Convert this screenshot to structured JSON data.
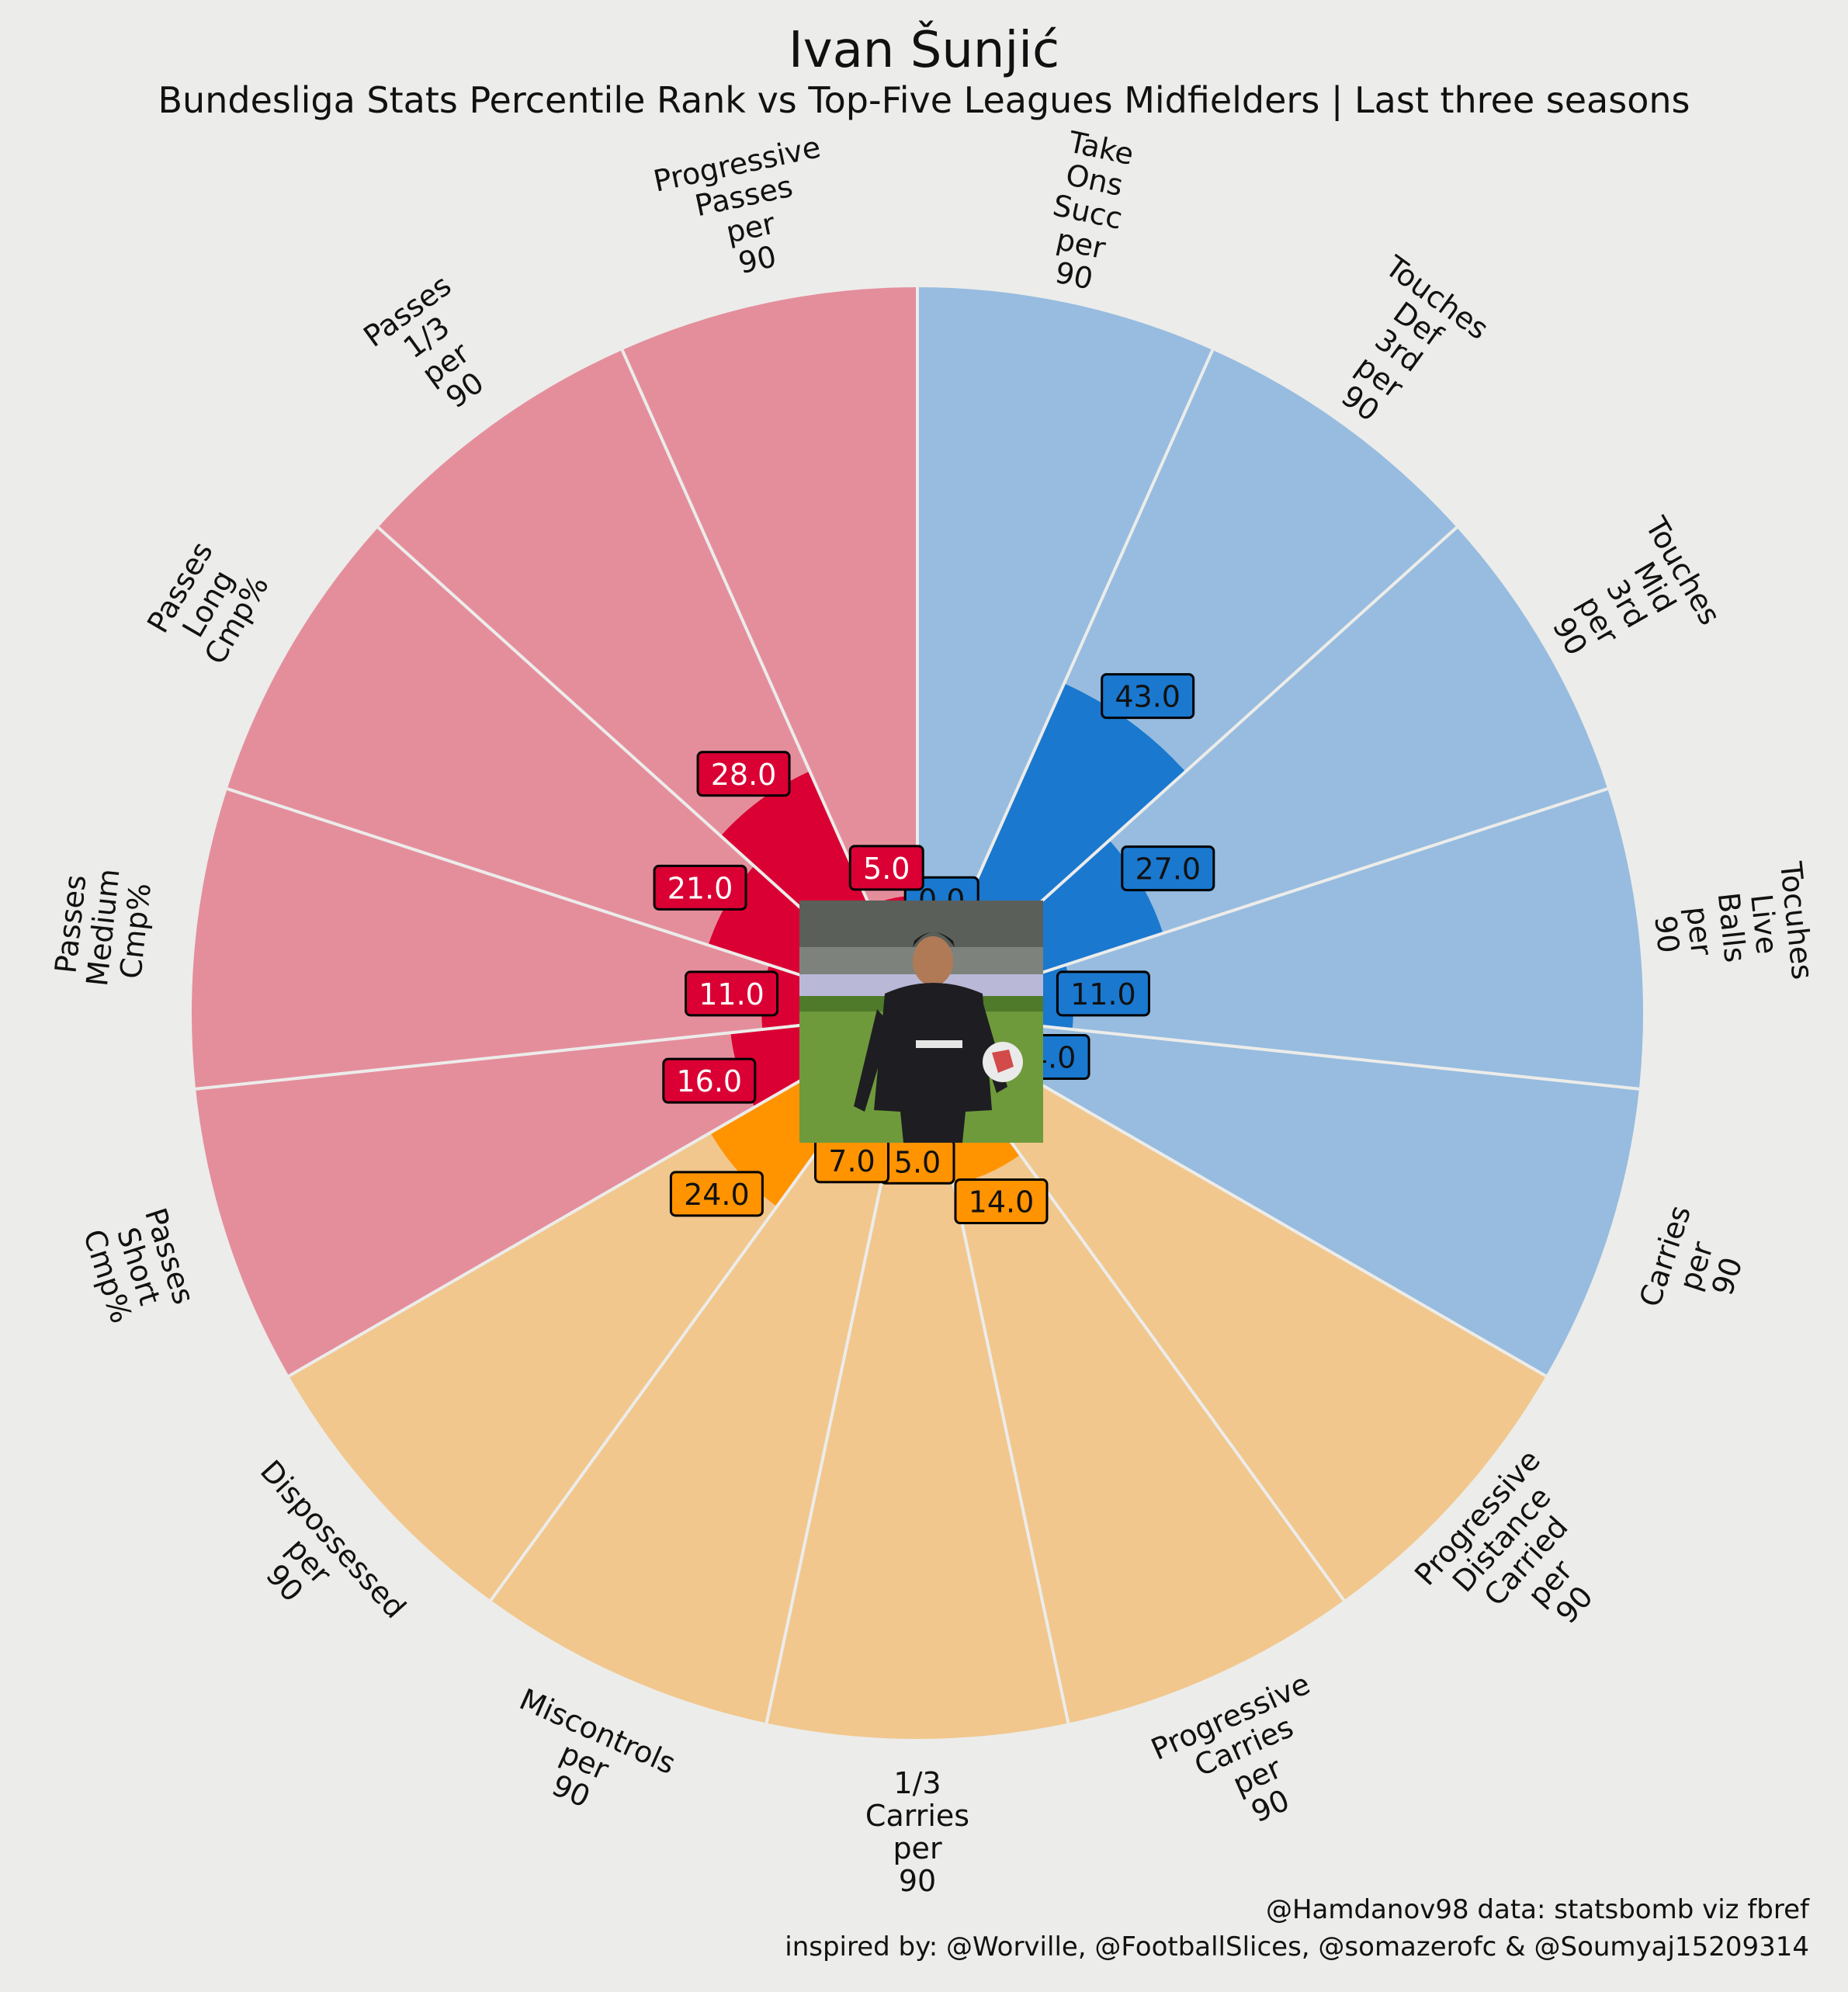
{
  "title": "Ivan Šunjić",
  "subtitle": "Bundesliga Stats Percentile Rank vs Top-Five Leagues Midfielders | Last three seasons",
  "credits": {
    "line1": "@Hamdanov98 data: statsbomb viz fbref",
    "line2": "inspired by: @Worville, @FootballSlices, @somazerofc & @Soumyaj15209314"
  },
  "chart_data": {
    "type": "polar-bar",
    "rlim": [
      0,
      100
    ],
    "groups": {
      "passing": {
        "light": "#e48e9c",
        "dark": "#da0033"
      },
      "possession": {
        "light": "#97bcdf",
        "dark": "#1a78cf"
      },
      "carrying": {
        "light": "#f1c78d",
        "dark": "#ff9300"
      }
    },
    "params": [
      {
        "label": "Take\nOns\nSucc\nper\n90",
        "value": 0.0,
        "group": "possession"
      },
      {
        "label": "Touches\nDef\n3rd\nper\n90",
        "value": 43.0,
        "group": "possession"
      },
      {
        "label": "Touches\nMid\n3rd\nper\n90",
        "value": 27.0,
        "group": "possession"
      },
      {
        "label": "Tocuhes\nLive\nBalls\nper\n90",
        "value": 11.0,
        "group": "possession"
      },
      {
        "label": "Carries\nper\n90",
        "value": 4.0,
        "group": "possession"
      },
      {
        "label": "Progressive\nDistance\nCarried\nper\n90",
        "value": 0.0,
        "group": "carrying"
      },
      {
        "label": "Progressive\nCarries\nper\n90",
        "value": 14.0,
        "group": "carrying"
      },
      {
        "label": "1/3\nCarries\nper\n90",
        "value": 5.0,
        "group": "carrying"
      },
      {
        "label": "Miscontrols\nper\n90",
        "value": 7.0,
        "group": "carrying"
      },
      {
        "label": "Dispossessed\nper\n90",
        "value": 24.0,
        "group": "carrying"
      },
      {
        "label": "Passes\nShort\nCmp%",
        "value": 16.0,
        "group": "passing"
      },
      {
        "label": "Passes\nMedium\nCmp%",
        "value": 11.0,
        "group": "passing"
      },
      {
        "label": "Passes\nLong\nCmp%",
        "value": 21.0,
        "group": "passing"
      },
      {
        "label": "Passes\n1/3\nper\n90",
        "value": 28.0,
        "group": "passing"
      },
      {
        "label": "Progressive\nPasses\nper\n90",
        "value": 5.0,
        "group": "passing"
      }
    ]
  }
}
